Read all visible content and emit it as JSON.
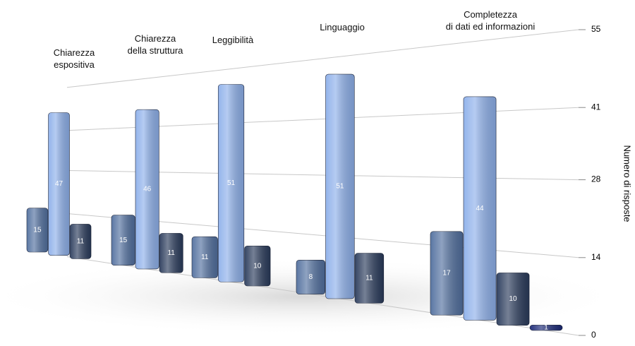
{
  "chart_data": {
    "type": "bar",
    "categories": [
      "Chiarezza\nespositiva",
      "Chiarezza\ndella struttura",
      "Leggibilità",
      "Linguaggio",
      "Completezza\ndi dati ed informazioni"
    ],
    "series": [
      {
        "color": "#52709f",
        "values": [
          15,
          15,
          11,
          8,
          17
        ]
      },
      {
        "color": "#8eb0ea",
        "values": [
          47,
          46,
          51,
          51,
          44
        ]
      },
      {
        "color": "#2b3c5c",
        "values": [
          11,
          11,
          10,
          11,
          10
        ]
      },
      {
        "color": "#1c2a78",
        "values": [
          null,
          null,
          null,
          null,
          1
        ]
      }
    ],
    "ylim": [
      0,
      55
    ],
    "yticks": [
      0,
      14,
      28,
      41,
      55
    ],
    "grid": true,
    "y_label": "Numero di risposte"
  }
}
